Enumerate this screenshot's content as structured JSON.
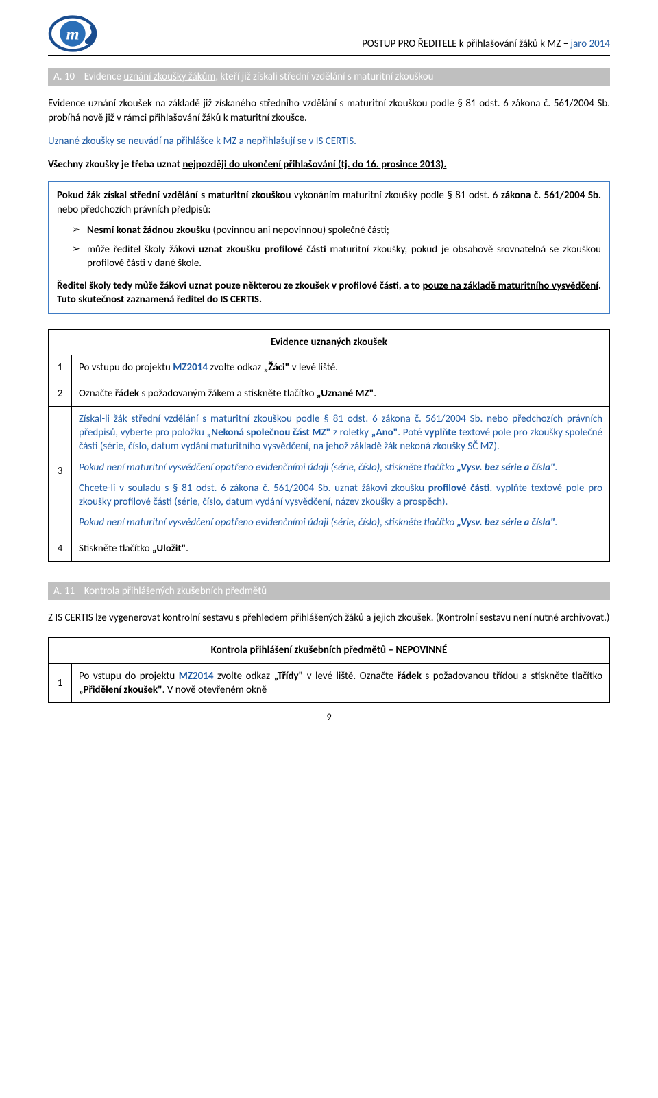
{
  "colors": {
    "blue": "#1f5aa3",
    "section_bar_bg": "#bfbfbf",
    "section_bar_text": "#ffffff",
    "box_border": "#3e7bc4",
    "text": "#000000",
    "logo_swoosh": "#1a4d8f",
    "logo_letter_fill": "#2a6fb8",
    "logo_inner": "#ffffff"
  },
  "header": {
    "title_prefix": "POSTUP PRO ŘEDITELE k přihlašování žáků k MZ – ",
    "title_suffix": "jaro 2014"
  },
  "sectionA10": {
    "num": "A. 10",
    "title_pre": "Evidence ",
    "title_underlined": "uznání zkoušky žákům",
    "title_post": ", kteří již získali střední vzdělání s maturitní zkouškou"
  },
  "intro": {
    "p1": "Evidence uznání zkoušek na základě již získaného středního vzdělání s maturitní zkouškou podle § 81 odst. 6 zákona č. 561/2004 Sb. probíhá nově již v rámci přihlašování žáků k maturitní zkoušce.",
    "p2": "Uznané zkoušky se neuvádí na přihlášce k MZ a nepřihlašují se v IS CERTIS.",
    "p3_pre": "Všechny zkoušky je třeba uznat ",
    "p3_under": "nejpozději do ukončení přihlašování (tj. do 16. prosince 2013)."
  },
  "box1": {
    "p1_pre": "Pokud žák získal střední vzdělání s maturitní zkouškou",
    "p1_post": " vykonáním maturitní zkoušky podle § 81 odst. 6",
    "p1_law": " zákona č. 561/2004 Sb.",
    "p1_tail": " nebo předchozích právních předpisů:",
    "bullets": [
      {
        "bold": "Nesmí konat žádnou zkoušku",
        "rest": " (povinnou ani nepovinnou) společné části;"
      },
      {
        "pre": "může ředitel školy žákovi ",
        "bold": "uznat zkoušku profilové části",
        "rest": " maturitní zkoušky, pokud je obsahově srovnatelná se zkouškou profilové části v dané škole."
      }
    ],
    "p3_pre": "Ředitel školy tedy může žákovi uznat pouze některou ze zkoušek v profilové části, a to ",
    "p3_under": "pouze na základě maturitního vysvědčení",
    "p3_post": ". Tuto skutečnost zaznamená ředitel do IS CERTIS."
  },
  "table1": {
    "title": "Evidence uznaných zkoušek",
    "rows": [
      {
        "n": "1",
        "parts": [
          {
            "t": "Po vstupu do projektu "
          },
          {
            "t": "MZ2014",
            "cls": "blue bold"
          },
          {
            "t": " zvolte odkaz "
          },
          {
            "t": "„Žáci\"",
            "cls": "bold"
          },
          {
            "t": " v levé liště."
          }
        ]
      },
      {
        "n": "2",
        "parts": [
          {
            "t": "Označte "
          },
          {
            "t": "řádek",
            "cls": "bold"
          },
          {
            "t": " s požadovaným žákem a stiskněte tlačítko "
          },
          {
            "t": "„Uznané MZ\"",
            "cls": "bold"
          },
          {
            "t": "."
          }
        ]
      },
      {
        "n": "3",
        "paragraphs": [
          {
            "cls": "blue",
            "parts": [
              {
                "t": "Získal-li žák střední vzdělání s maturitní zkouškou podle § 81 odst. 6 zákona č. 561/2004 Sb. nebo předchozích právních předpisů, vyberte pro položku "
              },
              {
                "t": "„Nekoná společnou část MZ\"",
                "cls": "bold"
              },
              {
                "t": " z roletky "
              },
              {
                "t": "„Ano\"",
                "cls": "bold"
              },
              {
                "t": ". Poté "
              },
              {
                "t": "vyplňte",
                "cls": "bold"
              },
              {
                "t": " textové pole pro zkoušky společné části (série, číslo, datum vydání maturitního vysvědčení, na jehož základě žák nekoná zkoušky SČ MZ)."
              }
            ]
          },
          {
            "cls": "blue italic",
            "parts": [
              {
                "t": "Pokud není maturitní vysvědčení opatřeno evidenčními údaji (série, číslo), stiskněte tlačítko "
              },
              {
                "t": "„Vysv. bez série a čísla\"",
                "cls": "bold"
              },
              {
                "t": "."
              }
            ]
          },
          {
            "cls": "blue",
            "parts": [
              {
                "t": "Chcete-li v souladu s § 81 odst. 6 zákona č. 561/2004 Sb. uznat žákovi zkoušku "
              },
              {
                "t": "profilové části",
                "cls": "bold"
              },
              {
                "t": ", vyplňte textové pole pro zkoušky profilové části (série, číslo, datum vydání vysvědčení, název zkoušky a prospěch)."
              }
            ]
          },
          {
            "cls": "blue italic",
            "parts": [
              {
                "t": "Pokud není maturitní vysvědčení opatřeno evidenčními údaji (série, číslo), stiskněte tlačítko "
              },
              {
                "t": "„Vysv. bez série a čísla\"",
                "cls": "bold"
              },
              {
                "t": "."
              }
            ]
          }
        ]
      },
      {
        "n": "4",
        "parts": [
          {
            "t": "Stiskněte tlačítko "
          },
          {
            "t": "„Uložit\"",
            "cls": "bold"
          },
          {
            "t": "."
          }
        ]
      }
    ]
  },
  "sectionA11": {
    "num": "A. 11",
    "title": "Kontrola přihlášených zkušebních předmětů"
  },
  "outro": {
    "p1": "Z IS CERTIS lze vygenerovat kontrolní sestavu s přehledem přihlášených žáků a jejich zkoušek. (Kontrolní sestavu není nutné archivovat.)"
  },
  "table2": {
    "title": "Kontrola přihlášení zkušebních předmětů – NEPOVINNÉ",
    "rows": [
      {
        "n": "1",
        "parts": [
          {
            "t": "Po vstupu do projektu "
          },
          {
            "t": "MZ2014",
            "cls": "blue bold"
          },
          {
            "t": " zvolte odkaz "
          },
          {
            "t": "„Třídy\"",
            "cls": "bold"
          },
          {
            "t": " v levé liště. Označte "
          },
          {
            "t": "řádek",
            "cls": "bold"
          },
          {
            "t": " s požadovanou třídou a stiskněte tlačítko "
          },
          {
            "t": "„Přidělení zkoušek\"",
            "cls": "bold"
          },
          {
            "t": ". V nově otevřeném okně"
          }
        ]
      }
    ]
  },
  "page_number": "9"
}
